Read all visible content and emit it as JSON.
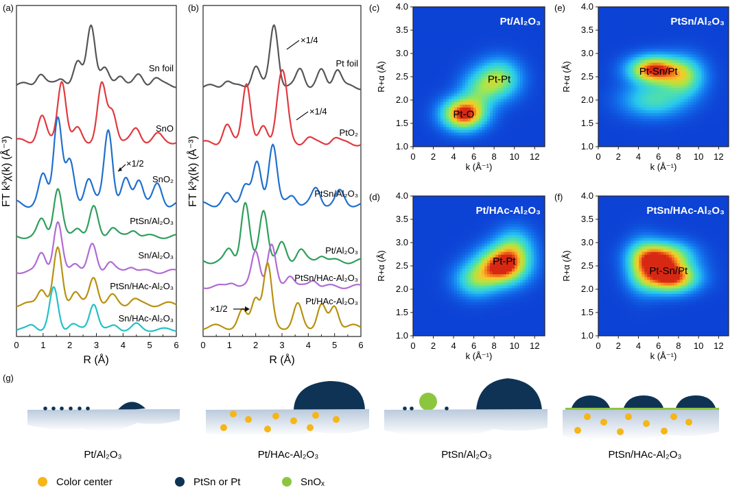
{
  "panels": {
    "a": {
      "letter": "(a)",
      "ylabel": "FT k³χ(k) (Å⁻³)",
      "xlabel": "R (Å)",
      "xticks": [
        "0",
        "1",
        "2",
        "3",
        "4",
        "5",
        "6"
      ],
      "annotation": "×1/2",
      "labels": [
        "Sn foil",
        "SnO",
        "SnO₂",
        "PtSn/Al₂O₃",
        "Sn/Al₂O₃",
        "PtSn/HAc-Al₂O₃",
        "Sn/HAc-Al₂O₃"
      ]
    },
    "b": {
      "letter": "(b)",
      "ylabel": "FT k³χ(k) (Å⁻³)",
      "xlabel": "R (Å)",
      "xticks": [
        "0",
        "1",
        "2",
        "3",
        "4",
        "5",
        "6"
      ],
      "annotations": [
        "×1/4",
        "×1/4",
        "×1/2"
      ],
      "labels": [
        "Pt foil",
        "PtO₂",
        "PtSn/Al₂O₃",
        "Pt/Al₂O₃",
        "PtSn/HAc-Al₂O₃",
        "Pt/HAc-Al₂O₃"
      ]
    },
    "wt": {
      "xlabel": "k (Å⁻¹)",
      "ylabel": "R+α (Å)",
      "xticks": [
        "0",
        "2",
        "4",
        "6",
        "8",
        "10",
        "12"
      ],
      "yticks": [
        "1.0",
        "1.5",
        "2.0",
        "2.5",
        "3.0",
        "3.5",
        "4.0"
      ],
      "maps": [
        {
          "letter": "(c)",
          "title": "Pt/Al₂O₃",
          "peaks": [
            "Pt-O",
            "Pt-Pt"
          ]
        },
        {
          "letter": "(e)",
          "title": "PtSn/Al₂O₃",
          "peaks": [
            "Pt-Sn/Pt"
          ]
        },
        {
          "letter": "(d)",
          "title": "Pt/HAc-Al₂O₃",
          "peaks": [
            "Pt-Pt"
          ]
        },
        {
          "letter": "(f)",
          "title": "PtSn/HAc-Al₂O₃",
          "peaks": [
            "Pt-Sn/Pt"
          ]
        }
      ]
    },
    "g": {
      "letter": "(g)",
      "schemes": [
        "Pt/Al₂O₃",
        "Pt/HAc-Al₂O₃",
        "PtSn/Al₂O₃",
        "PtSn/HAc-Al₂O₃"
      ],
      "legend": [
        {
          "label": "Color center",
          "color": "#f5b616"
        },
        {
          "label": "PtSn or Pt",
          "color": "#0e3354"
        },
        {
          "label": "SnOₓ",
          "color": "#8cc63f"
        }
      ]
    }
  },
  "chart_data": [
    {
      "type": "line",
      "title": "",
      "xlabel": "R (Å)",
      "ylabel": "FT k³χ(k) (Å⁻³)",
      "xlim": [
        0,
        6
      ],
      "series": [
        {
          "name": "Sn foil",
          "color": "#555555",
          "peaks": [
            [
              0.9,
              0.2
            ],
            [
              1.7,
              0.12
            ],
            [
              2.3,
              0.35
            ],
            [
              2.8,
              1.0
            ],
            [
              3.3,
              0.25
            ],
            [
              3.9,
              0.18
            ],
            [
              4.6,
              0.15
            ],
            [
              5.2,
              0.12
            ]
          ]
        },
        {
          "name": "SnO",
          "color": "#e0393e",
          "peaks": [
            [
              0.95,
              0.4
            ],
            [
              1.7,
              1.0
            ],
            [
              2.3,
              0.2
            ],
            [
              3.2,
              0.9
            ],
            [
              3.6,
              0.5
            ],
            [
              4.5,
              0.2
            ],
            [
              5.3,
              0.1
            ]
          ]
        },
        {
          "name": "SnO₂",
          "color": "#1f6fce",
          "peaks": [
            [
              1.0,
              0.3
            ],
            [
              1.55,
              1.0
            ],
            [
              2.0,
              0.45
            ],
            [
              2.7,
              0.3
            ],
            [
              3.45,
              0.85
            ],
            [
              4.1,
              0.25
            ],
            [
              4.6,
              0.3
            ],
            [
              5.3,
              0.2
            ]
          ]
        },
        {
          "name": "PtSn/Al₂O₃",
          "color": "#2e9e5b",
          "peaks": [
            [
              0.95,
              0.35
            ],
            [
              1.55,
              1.0
            ],
            [
              2.3,
              0.2
            ],
            [
              2.9,
              0.6
            ],
            [
              3.6,
              0.2
            ],
            [
              4.4,
              0.15
            ]
          ]
        },
        {
          "name": "Sn/Al₂O₃",
          "color": "#b06ad4",
          "peaks": [
            [
              0.95,
              0.4
            ],
            [
              1.55,
              1.0
            ],
            [
              2.2,
              0.2
            ],
            [
              2.85,
              0.55
            ],
            [
              3.5,
              0.2
            ],
            [
              4.3,
              0.12
            ]
          ]
        },
        {
          "name": "PtSn/HAc-Al₂O₃",
          "color": "#b8900e",
          "peaks": [
            [
              0.95,
              0.3
            ],
            [
              1.55,
              1.0
            ],
            [
              2.2,
              0.25
            ],
            [
              2.9,
              0.5
            ],
            [
              3.6,
              0.15
            ],
            [
              4.4,
              0.1
            ]
          ]
        },
        {
          "name": "Sn/HAc-Al₂O₃",
          "color": "#22c0c8",
          "peaks": [
            [
              0.6,
              0.12
            ],
            [
              1.4,
              1.0
            ],
            [
              2.1,
              0.15
            ],
            [
              2.9,
              0.65
            ],
            [
              3.7,
              0.1
            ],
            [
              4.5,
              0.12
            ]
          ]
        }
      ]
    },
    {
      "type": "line",
      "title": "",
      "xlabel": "R (Å)",
      "ylabel": "FT k³χ(k) (Å⁻³)",
      "xlim": [
        0,
        6
      ],
      "series": [
        {
          "name": "Pt foil",
          "color": "#555555",
          "peaks": [
            [
              0.9,
              0.12
            ],
            [
              2.0,
              0.35
            ],
            [
              2.7,
              1.0
            ],
            [
              3.7,
              0.3
            ],
            [
              4.5,
              0.25
            ],
            [
              5.1,
              0.3
            ]
          ]
        },
        {
          "name": "PtO₂",
          "color": "#e0393e",
          "peaks": [
            [
              0.9,
              0.3
            ],
            [
              1.65,
              1.0
            ],
            [
              2.3,
              0.25
            ],
            [
              2.9,
              0.7
            ],
            [
              3.1,
              0.75
            ],
            [
              4.0,
              0.1
            ],
            [
              5.0,
              0.1
            ]
          ]
        },
        {
          "name": "PtSn/Al₂O₃",
          "color": "#1f6fce",
          "peaks": [
            [
              0.9,
              0.15
            ],
            [
              1.6,
              0.35
            ],
            [
              2.05,
              0.65
            ],
            [
              2.65,
              1.0
            ],
            [
              3.4,
              0.15
            ],
            [
              4.3,
              0.25
            ],
            [
              5.2,
              0.2
            ]
          ]
        },
        {
          "name": "Pt/Al₂O₃",
          "color": "#2e9e5b",
          "peaks": [
            [
              1.0,
              0.2
            ],
            [
              1.6,
              1.0
            ],
            [
              2.3,
              0.9
            ],
            [
              3.0,
              0.3
            ],
            [
              3.7,
              0.2
            ],
            [
              4.5,
              0.12
            ]
          ]
        },
        {
          "name": "PtSn/HAc-Al₂O₃",
          "color": "#b06ad4",
          "peaks": [
            [
              1.1,
              0.1
            ],
            [
              2.0,
              0.75
            ],
            [
              2.6,
              0.85
            ],
            [
              3.3,
              0.25
            ],
            [
              4.2,
              0.15
            ]
          ]
        },
        {
          "name": "Pt/HAc-Al₂O₃",
          "color": "#b8900e",
          "peaks": [
            [
              1.5,
              0.25
            ],
            [
              2.0,
              0.5
            ],
            [
              2.45,
              1.0
            ],
            [
              3.6,
              0.35
            ],
            [
              4.5,
              0.35
            ],
            [
              5.0,
              0.35
            ]
          ]
        }
      ]
    },
    {
      "type": "heatmap",
      "title": "Pt/Al₂O₃",
      "xlabel": "k (Å⁻¹)",
      "ylabel": "R+α (Å)",
      "xlim": [
        0,
        13
      ],
      "ylim": [
        1.0,
        4.0
      ],
      "maxima": [
        {
          "label": "Pt-O",
          "k": 5.0,
          "R": 1.7
        },
        {
          "label": "Pt-Pt",
          "k": 8.5,
          "R": 2.5
        }
      ]
    },
    {
      "type": "heatmap",
      "title": "PtSn/Al₂O₃",
      "xlabel": "k (Å⁻¹)",
      "ylabel": "R+α (Å)",
      "xlim": [
        0,
        13
      ],
      "ylim": [
        1.0,
        4.0
      ],
      "maxima": [
        {
          "label": "Pt-Sn/Pt",
          "k": 6.0,
          "R": 2.6
        }
      ]
    },
    {
      "type": "heatmap",
      "title": "Pt/HAc-Al₂O₃",
      "xlabel": "k (Å⁻¹)",
      "ylabel": "R+α (Å)",
      "xlim": [
        0,
        13
      ],
      "ylim": [
        1.0,
        4.0
      ],
      "maxima": [
        {
          "label": "Pt-Pt",
          "k": 8.8,
          "R": 2.5
        }
      ]
    },
    {
      "type": "heatmap",
      "title": "PtSn/HAc-Al₂O₃",
      "xlabel": "k (Å⁻¹)",
      "ylabel": "R+α (Å)",
      "xlim": [
        0,
        13
      ],
      "ylim": [
        1.0,
        4.0
      ],
      "maxima": [
        {
          "label": "Pt-Sn/Pt",
          "k": 7.0,
          "R": 2.3
        }
      ]
    }
  ]
}
